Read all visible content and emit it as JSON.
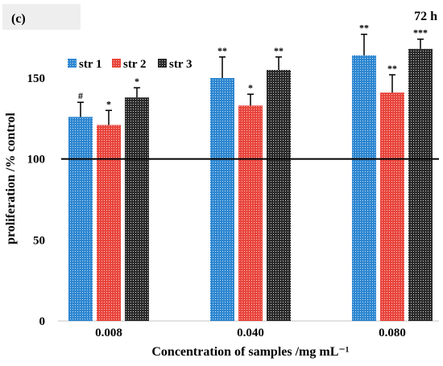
{
  "panel_label": "(c)",
  "time_label": "72 h",
  "chart_data": {
    "type": "bar",
    "categories": [
      "0.008",
      "0.040",
      "0.080"
    ],
    "xlabel": "Concentration of samples /mg mL⁻¹",
    "ylabel": "proliferation /% control",
    "ylim": [
      0,
      175
    ],
    "yticks": [
      0,
      50,
      100,
      150
    ],
    "grid": false,
    "legend_position": "top-left",
    "reference_line": 100,
    "series": [
      {
        "name": "str 1",
        "color": "#2e86d0",
        "values": [
          126,
          150,
          164
        ],
        "errors": [
          9,
          13,
          13
        ],
        "significance": [
          "#",
          "**",
          "**"
        ]
      },
      {
        "name": "str 2",
        "color": "#e8453c",
        "values": [
          121,
          133,
          141
        ],
        "errors": [
          9,
          7,
          11
        ],
        "significance": [
          "*",
          "*",
          "**"
        ]
      },
      {
        "name": "str 3",
        "color": "#3a3a3a",
        "values": [
          138,
          155,
          168
        ],
        "errors": [
          6,
          8,
          6
        ],
        "significance": [
          "*",
          "**",
          "***"
        ]
      }
    ]
  }
}
